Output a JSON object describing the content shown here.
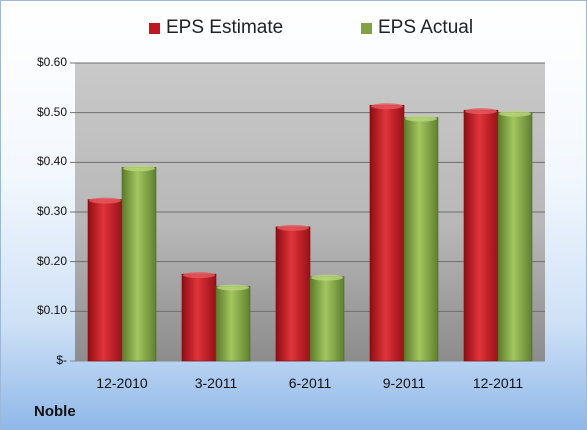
{
  "chart_data": {
    "type": "bar",
    "categories": [
      "12-2010",
      "3-2011",
      "6-2011",
      "9-2011",
      "12-2011"
    ],
    "series": [
      {
        "name": "EPS Estimate",
        "values": [
          0.325,
          0.175,
          0.27,
          0.515,
          0.505
        ],
        "color": "#c0181f"
      },
      {
        "name": "EPS Actual",
        "values": [
          0.39,
          0.15,
          0.17,
          0.49,
          0.5
        ],
        "color": "#7ea33f"
      }
    ],
    "ylim": [
      0,
      0.6
    ],
    "yticks": [
      0,
      0.1,
      0.2,
      0.3,
      0.4,
      0.5,
      0.6
    ],
    "ytick_labels": [
      "$-",
      "$0.10",
      "$0.20",
      "$0.30",
      "$0.40",
      "$0.50",
      "$0.60"
    ],
    "legend_position": "top-center",
    "grid": true
  },
  "company": "Noble"
}
